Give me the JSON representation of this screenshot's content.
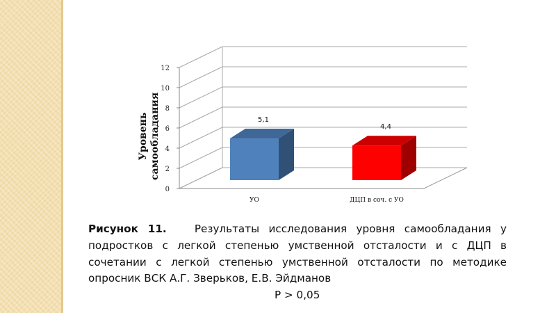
{
  "chart_data": {
    "type": "bar",
    "categories": [
      "УО",
      "ДЦП в соч. с УО"
    ],
    "values": [
      5.1,
      4.4
    ],
    "value_labels": [
      "5,1",
      "4,4"
    ],
    "ylabel": "Уровень самообладания",
    "ylim": [
      0,
      12
    ],
    "yticks": [
      0,
      2,
      4,
      6,
      8,
      10,
      12
    ],
    "grid": true,
    "legend": "none",
    "colors": {
      "УО": "#4f81bd",
      "ДЦП в соч. с УО": "#ff0000"
    }
  },
  "caption": {
    "figure_label": "Рисунок 11.",
    "text": "Результаты исследования уровня самообладания у подростков с легкой степенью умственной отсталости и с ДЦП в сочетании с легкой степенью умственной отсталости по методике опросник ВСК А.Г. Зверьков, Е.В. Эйдманов",
    "pvalue": "P > 0,05"
  }
}
